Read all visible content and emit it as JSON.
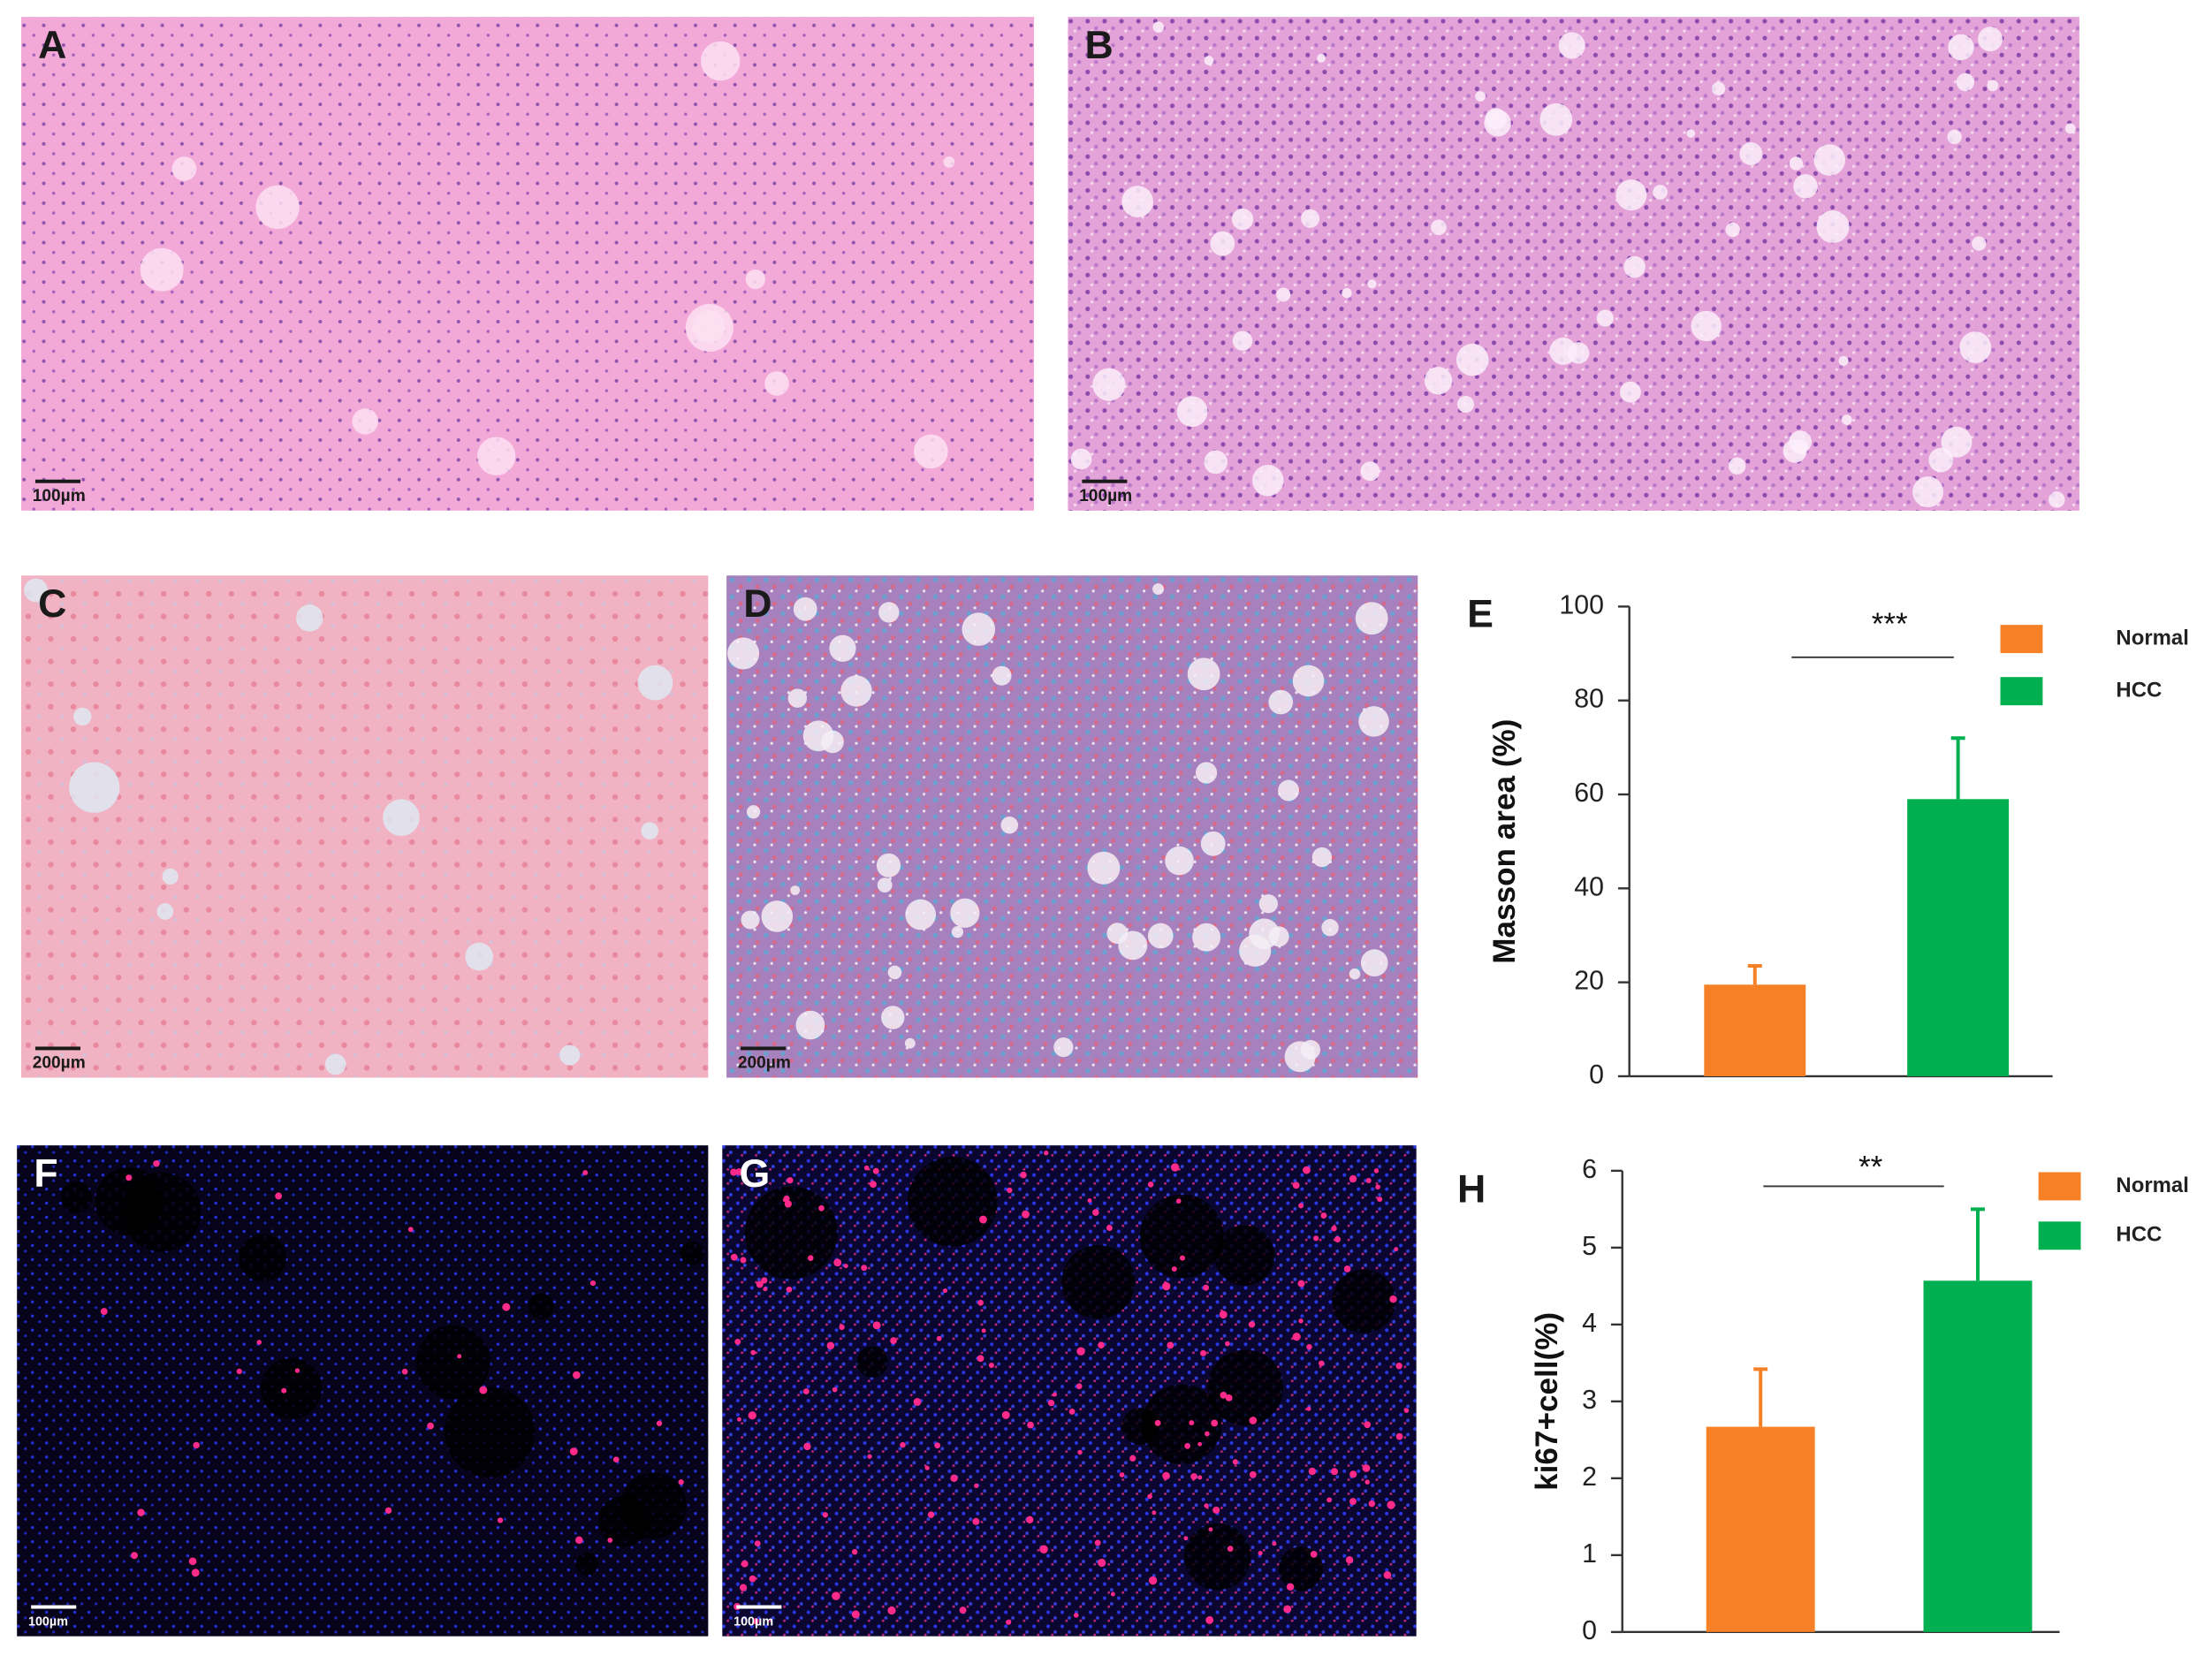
{
  "panels": [
    {
      "label": "A",
      "scale_bar": "100µm"
    },
    {
      "label": "B",
      "scale_bar": "100µm"
    },
    {
      "label": "C",
      "scale_bar": "200µm"
    },
    {
      "label": "D",
      "scale_bar": "200µm"
    },
    {
      "label": "F",
      "scale_bar": "100µm"
    },
    {
      "label": "G",
      "scale_bar": "100µm"
    }
  ],
  "chart_data": [
    {
      "type": "bar",
      "panel_label": "E",
      "y_label": "Masson area (%)",
      "categories": [
        "Normal",
        "HCC"
      ],
      "values": [
        19.5,
        59
      ],
      "errors": [
        4,
        13
      ],
      "colors": [
        "#f58025",
        "#00b050"
      ],
      "ylim": [
        0,
        100
      ],
      "yticks": [
        0,
        20,
        40,
        60,
        80,
        100
      ],
      "significance": "***"
    },
    {
      "type": "bar",
      "panel_label": "H",
      "y_label": "ki67+cell(%)",
      "categories": [
        "Normal",
        "HCC"
      ],
      "values": [
        2.67,
        4.57
      ],
      "errors": [
        0.75,
        0.93
      ],
      "colors": [
        "#f58025",
        "#00b050"
      ],
      "ylim": [
        0,
        6
      ],
      "yticks": [
        0,
        1,
        2,
        3,
        4,
        5,
        6
      ],
      "significance": "**"
    }
  ]
}
